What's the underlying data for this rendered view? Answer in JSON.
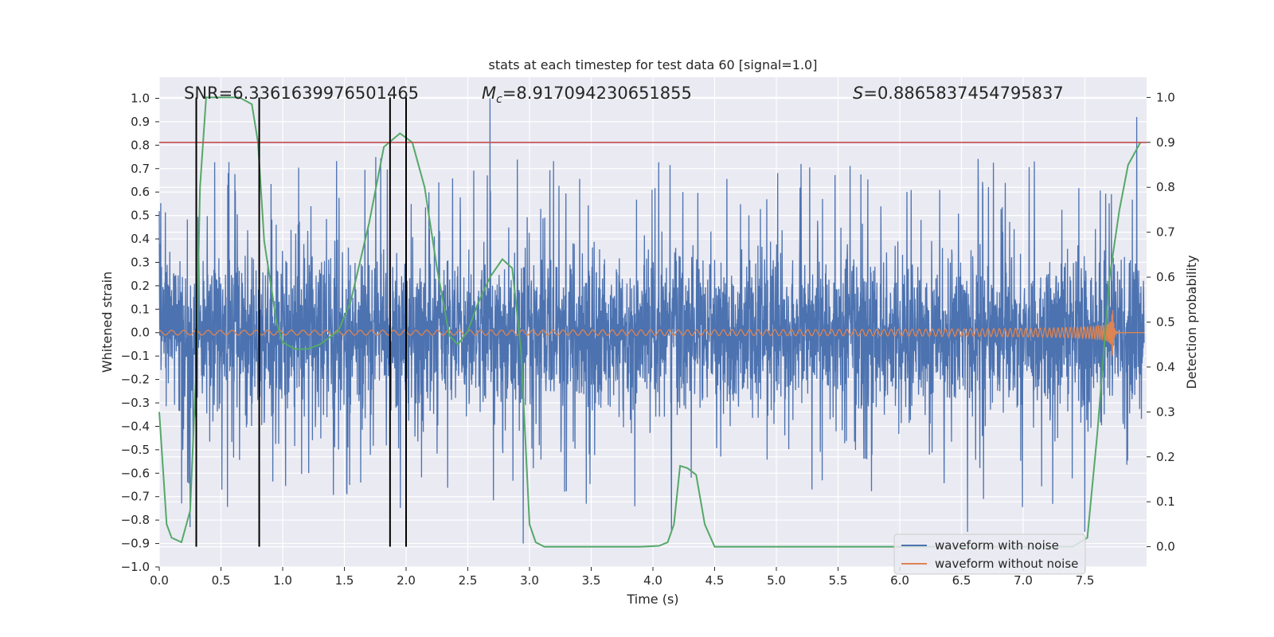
{
  "chart_data": {
    "type": "line",
    "title": "stats at each timestep for test data 60 [signal=1.0]",
    "xlabel": "Time (s)",
    "ylabel": "Whitened strain",
    "y2label": "Detection probability",
    "xlim": [
      0,
      8.0
    ],
    "ylim": [
      -1.0,
      1.09
    ],
    "y2lim": [
      -0.045,
      1.045
    ],
    "x_ticks": [
      0.0,
      0.5,
      1.0,
      1.5,
      2.0,
      2.5,
      3.0,
      3.5,
      4.0,
      4.5,
      5.0,
      5.5,
      6.0,
      6.5,
      7.0,
      7.5
    ],
    "x_tick_labels": [
      "0.0",
      "0.5",
      "1.0",
      "1.5",
      "2.0",
      "2.5",
      "3.0",
      "3.5",
      "4.0",
      "4.5",
      "5.0",
      "5.5",
      "6.0",
      "6.5",
      "7.0",
      "7.5"
    ],
    "y_ticks": [
      -1.0,
      -0.9,
      -0.8,
      -0.7,
      -0.6,
      -0.5,
      -0.4,
      -0.3,
      -0.2,
      -0.1,
      0.0,
      0.1,
      0.2,
      0.3,
      0.4,
      0.5,
      0.6,
      0.7,
      0.8,
      0.9,
      1.0
    ],
    "y_tick_labels": [
      "−1.0",
      "−0.9",
      "−0.8",
      "−0.7",
      "−0.6",
      "−0.5",
      "−0.4",
      "−0.3",
      "−0.2",
      "−0.1",
      "0.0",
      "0.1",
      "0.2",
      "0.3",
      "0.4",
      "0.5",
      "0.6",
      "0.7",
      "0.8",
      "0.9",
      "1.0"
    ],
    "y2_ticks": [
      0.0,
      0.1,
      0.2,
      0.3,
      0.4,
      0.5,
      0.6,
      0.7,
      0.8,
      0.9,
      1.0
    ],
    "y2_tick_labels": [
      "0.0",
      "0.1",
      "0.2",
      "0.3",
      "0.4",
      "0.5",
      "0.6",
      "0.7",
      "0.8",
      "0.9",
      "1.0"
    ],
    "stats": {
      "snr_label": "SNR=6.3361639976501465",
      "mc_symbol": "M",
      "mc_sub": "c",
      "mc_value": "=8.917094230651855",
      "s_symbol": "S",
      "s_value": "=0.8865837454795837"
    },
    "noisy_waveform": {
      "name": "waveform with noise",
      "color": "#4c72b0",
      "sample_count": 4000,
      "envelope_note": "band roughly ±0.3 with spikes up to about ±0.9",
      "spikes": [
        {
          "x": 2.68,
          "y": 1.0
        },
        {
          "x": 7.92,
          "y": 0.92
        },
        {
          "x": 2.95,
          "y": -0.9
        },
        {
          "x": 6.55,
          "y": -0.85
        },
        {
          "x": 4.15,
          "y": -0.85
        },
        {
          "x": 7.5,
          "y": -0.85
        },
        {
          "x": 0.25,
          "y": -0.83
        }
      ]
    },
    "clean_waveform": {
      "name": "waveform without noise",
      "color": "#dd8452",
      "merger_time": 7.72,
      "peak_amplitude": 0.18,
      "early_amplitude": 0.01
    },
    "detection_probability": {
      "color": "#55a868",
      "x": [
        0.0,
        0.06,
        0.1,
        0.18,
        0.25,
        0.3,
        0.33,
        0.38,
        0.45,
        0.55,
        0.65,
        0.75,
        0.8,
        0.85,
        0.95,
        1.0,
        1.1,
        1.2,
        1.3,
        1.45,
        1.55,
        1.7,
        1.82,
        1.95,
        2.05,
        2.15,
        2.25,
        2.35,
        2.42,
        2.5,
        2.58,
        2.68,
        2.78,
        2.86,
        2.93,
        3.0,
        3.05,
        3.12,
        3.3,
        3.6,
        3.9,
        4.05,
        4.12,
        4.17,
        4.22,
        4.28,
        4.35,
        4.42,
        4.5,
        5.0,
        5.5,
        6.0,
        6.5,
        7.0,
        7.4,
        7.52,
        7.6,
        7.7,
        7.78,
        7.85,
        7.95
      ],
      "y": [
        0.3,
        0.05,
        0.02,
        0.01,
        0.08,
        0.4,
        0.8,
        1.0,
        1.0,
        1.0,
        1.0,
        0.985,
        0.9,
        0.68,
        0.5,
        0.455,
        0.44,
        0.44,
        0.45,
        0.48,
        0.545,
        0.72,
        0.89,
        0.92,
        0.9,
        0.8,
        0.62,
        0.47,
        0.45,
        0.48,
        0.54,
        0.6,
        0.64,
        0.62,
        0.44,
        0.05,
        0.01,
        0.0,
        0.0,
        0.0,
        0.0,
        0.002,
        0.01,
        0.05,
        0.18,
        0.175,
        0.16,
        0.05,
        0.0,
        0.0,
        0.0,
        0.0,
        0.0,
        0.0,
        0.0,
        0.02,
        0.25,
        0.6,
        0.75,
        0.85,
        0.9
      ]
    },
    "threshold": {
      "y2": 0.9,
      "color": "#c44e52"
    },
    "event_lines": {
      "color": "#000000",
      "x": [
        0.3,
        0.81,
        1.87,
        2.0
      ],
      "y2_range": [
        0.0,
        1.0
      ]
    },
    "legend": {
      "placement": "lower-right",
      "entries": [
        {
          "label": "waveform with noise",
          "color": "#4c72b0"
        },
        {
          "label": "waveform without noise",
          "color": "#dd8452"
        }
      ]
    },
    "grid": true
  }
}
